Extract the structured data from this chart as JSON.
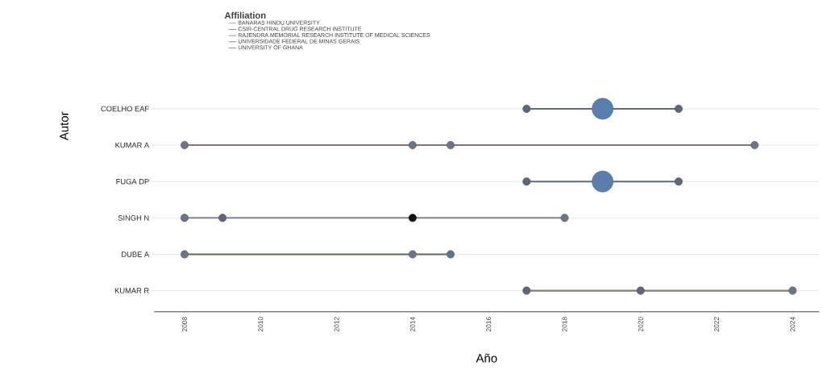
{
  "chart_data": {
    "type": "bubble",
    "orientation": "horizontal",
    "xlabel": "Año",
    "ylabel": "Autor",
    "legend_title": "Affiliation",
    "legend": "top left",
    "grid": "y",
    "categories": [
      "COELHO EAF",
      "KUMAR A",
      "FUGA DP",
      "SINGH N",
      "DUBE A",
      "KUMAR R"
    ],
    "xlim": [
      2007.2,
      2024.7
    ],
    "xticks": [
      2008,
      2010,
      2012,
      2014,
      2016,
      2018,
      2020,
      2022,
      2024
    ],
    "series": [
      {
        "type": "line",
        "name": "BANARAS HINDU UNIVERSITY",
        "color": "#7f8590",
        "x": [
          "SINGH N",
          "SINGH N"
        ],
        "values": [
          2008,
          2018
        ]
      },
      {
        "type": "line",
        "name": "CSIR-CENTRAL DRUG RESEARCH INSTITUTE",
        "color": "#5a6a55",
        "x": [
          "DUBE A",
          "DUBE A"
        ],
        "values": [
          2008,
          2015
        ]
      },
      {
        "type": "line",
        "name": "RAJENDRA MEMORIAL RESEARCH INSTITUTE OF MEDICAL SCIENCES",
        "color": "#857d70",
        "x": [
          "KUMAR R",
          "KUMAR R"
        ],
        "values": [
          2017,
          2024
        ]
      },
      {
        "type": "line",
        "name": "UNIVERSIDADE FEDERAL DE MINAS GERAIS",
        "color": "#5c6b80",
        "x": [
          "COELHO EAF",
          "COELHO EAF",
          null,
          "FUGA DP",
          "FUGA DP"
        ],
        "values": [
          2017,
          2021,
          null,
          2017,
          2021
        ]
      },
      {
        "type": "line",
        "name": "UNIVERSITY OF GHANA",
        "color": "#8a6e78",
        "x": [
          "KUMAR A",
          "KUMAR A"
        ],
        "values": [
          2008,
          2023
        ]
      },
      {
        "x": [
          "COELHO EAF",
          "COELHO EAF",
          "COELHO EAF",
          "KUMAR A",
          "KUMAR A",
          "KUMAR A",
          "KUMAR A",
          "FUGA DP",
          "FUGA DP",
          "FUGA DP",
          "SINGH N",
          "SINGH N",
          "SINGH N",
          "SINGH N",
          "DUBE A",
          "DUBE A",
          "DUBE A",
          "KUMAR R",
          "KUMAR R",
          "KUMAR R"
        ],
        "values": [
          2017,
          2019,
          2021,
          2008,
          2014,
          2015,
          2023,
          2017,
          2019,
          2021,
          2008,
          2009,
          2014,
          2018,
          2008,
          2014,
          2015,
          2017,
          2020,
          2024
        ],
        "sizes": [
          0.13,
          1,
          0.13,
          0.13,
          0.13,
          0.13,
          0.13,
          0.13,
          1,
          0.13,
          0.13,
          0.13,
          0.13,
          0.13,
          0.13,
          0.13,
          0.13,
          0.13,
          0.13,
          0.13
        ],
        "colors": [
          "#5e6678",
          "#5a7fae",
          "#5e6678",
          "#6e7484",
          "#6e7484",
          "#6e7484",
          "#6e7484",
          "#5e6678",
          "#5a7fae",
          "#5e6678",
          "#6e7484",
          "#5e6678",
          "#111111",
          "#6e7484",
          "#6e7484",
          "#6e7484",
          "#5e7488",
          "#5e6678",
          "#5e6678",
          "#6e7484"
        ]
      }
    ]
  }
}
